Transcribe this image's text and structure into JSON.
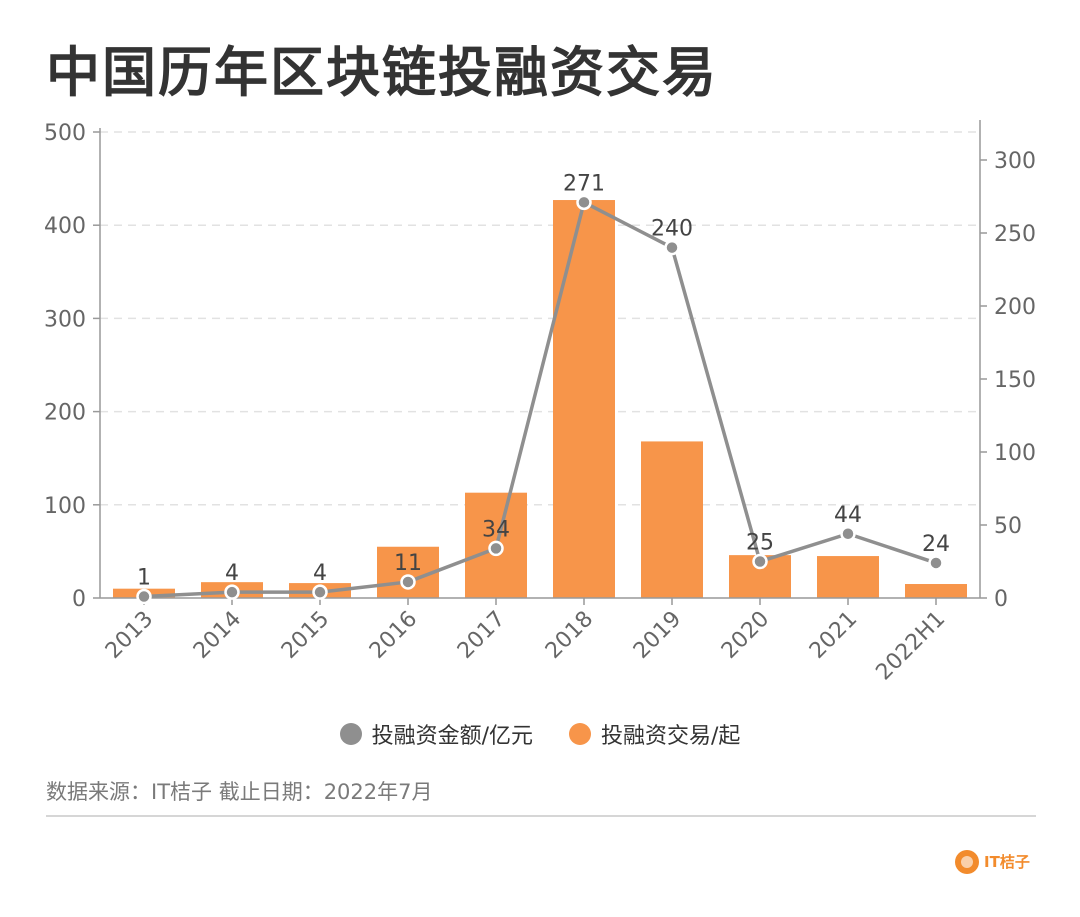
{
  "title": "中国历年区块链投融资交易",
  "chart_data": {
    "type": "bar",
    "categories": [
      "2013",
      "2014",
      "2015",
      "2016",
      "2017",
      "2018",
      "2019",
      "2020",
      "2021",
      "2022H1"
    ],
    "series": [
      {
        "name": "投融资交易/起",
        "type": "bar",
        "axis": "left",
        "color": "#f7954a",
        "values": [
          10,
          17,
          16,
          55,
          113,
          427,
          168,
          46,
          45,
          15
        ]
      },
      {
        "name": "投融资金额/亿元",
        "type": "line",
        "axis": "right",
        "color": "#8f8f8f",
        "values": [
          1,
          4,
          4,
          11,
          34,
          271,
          240,
          25,
          44,
          24
        ],
        "labels": [
          "1",
          "4",
          "4",
          "11",
          "34",
          "271",
          "240",
          "25",
          "44",
          "24"
        ]
      }
    ],
    "y_left": {
      "min": 0,
      "max": 500,
      "ticks": [
        "0",
        "100",
        "200",
        "300",
        "400",
        "500"
      ]
    },
    "y_right": {
      "min": 0,
      "max": 300,
      "ticks": [
        "0",
        "50",
        "100",
        "150",
        "200",
        "250",
        "300"
      ]
    },
    "grid": true,
    "legend_position": "bottom"
  },
  "legend": [
    {
      "label": "投融资金额/亿元",
      "color": "#8f8f8f"
    },
    {
      "label": "投融资交易/起",
      "color": "#f7954a"
    }
  ],
  "source": "数据来源：IT桔子 截止日期：2022年7月",
  "brand": {
    "name": "IT桔子"
  }
}
